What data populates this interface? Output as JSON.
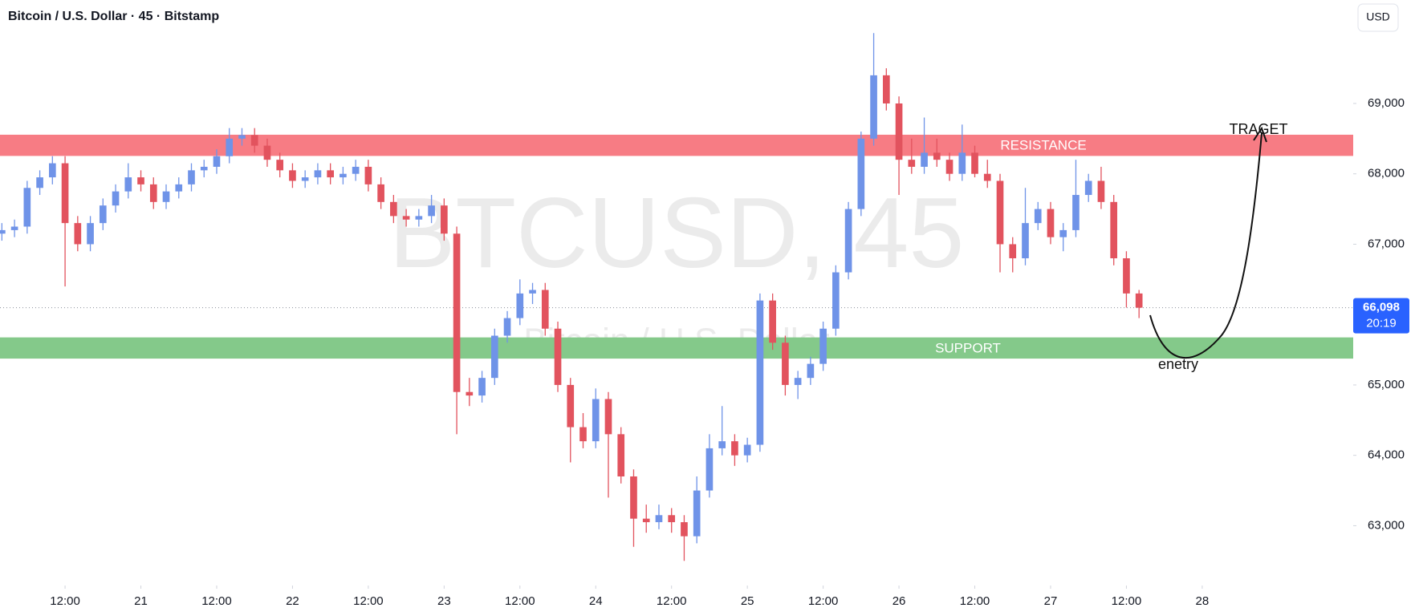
{
  "chart_data": {
    "type": "candlestick",
    "title": "Bitcoin / U.S. Dollar · 45 · Bitstamp",
    "currency": "USD",
    "watermark": "BTCUSD, 45",
    "watermark_subtitle": "Bitcoin / U.S. Dollar",
    "up_color": "#6f93e8",
    "down_color": "#e2535e",
    "grid": false,
    "xlim": [
      1.7,
      215.9
    ],
    "ylim": [
      62150,
      70470
    ],
    "xticks": [
      {
        "value": 12,
        "label": "12:00"
      },
      {
        "value": 24,
        "label": "21"
      },
      {
        "value": 36,
        "label": "12:00"
      },
      {
        "value": 48,
        "label": "22"
      },
      {
        "value": 60,
        "label": "12:00"
      },
      {
        "value": 72,
        "label": "23"
      },
      {
        "value": 84,
        "label": "12:00"
      },
      {
        "value": 96,
        "label": "24"
      },
      {
        "value": 108,
        "label": "12:00"
      },
      {
        "value": 120,
        "label": "25"
      },
      {
        "value": 132,
        "label": "12:00"
      },
      {
        "value": 144,
        "label": "26"
      },
      {
        "value": 156,
        "label": "12:00"
      },
      {
        "value": 168,
        "label": "27"
      },
      {
        "value": 180,
        "label": "12:00"
      },
      {
        "value": 192,
        "label": "28"
      }
    ],
    "yticks": [
      {
        "value": 63000,
        "label": "63,000"
      },
      {
        "value": 64000,
        "label": "64,000"
      },
      {
        "value": 65000,
        "label": "65,000"
      },
      {
        "value": 66000,
        "label": "66,000"
      },
      {
        "value": 67000,
        "label": "67,000"
      },
      {
        "value": 68000,
        "label": "68,000"
      },
      {
        "value": 69000,
        "label": "69,000"
      }
    ],
    "last_price": {
      "value": 66098,
      "label": "66,098"
    },
    "countdown": "20:19",
    "zones": [
      {
        "label": "RESISTANCE",
        "range": [
          68260,
          68550
        ],
        "color": "#f77c84"
      },
      {
        "label": "SUPPORT",
        "range": [
          65380,
          65670
        ],
        "color": "#84c98a"
      }
    ],
    "annotations": [
      "TRAGET",
      "enetry"
    ],
    "x": [
      2,
      4,
      6,
      8,
      10,
      12,
      14,
      16,
      18,
      20,
      22,
      24,
      26,
      28,
      30,
      32,
      34,
      36,
      38,
      40,
      42,
      44,
      46,
      48,
      50,
      52,
      54,
      56,
      58,
      60,
      62,
      64,
      66,
      68,
      70,
      72,
      74,
      76,
      78,
      80,
      82,
      84,
      86,
      88,
      90,
      92,
      94,
      96,
      98,
      100,
      102,
      104,
      106,
      108,
      110,
      112,
      114,
      116,
      118,
      120,
      122,
      124,
      126,
      128,
      130,
      132,
      134,
      136,
      138,
      140,
      142,
      144,
      146,
      148,
      150,
      152,
      154,
      156,
      158,
      160,
      162,
      164,
      166,
      168,
      170,
      172,
      174,
      176,
      178,
      180,
      182
    ],
    "ohlc": [
      [
        67150,
        67300,
        67050,
        67200
      ],
      [
        67200,
        67350,
        67100,
        67250
      ],
      [
        67250,
        67900,
        67150,
        67800
      ],
      [
        67800,
        68050,
        67700,
        67950
      ],
      [
        67950,
        68250,
        67850,
        68150
      ],
      [
        68150,
        68250,
        66400,
        67300
      ],
      [
        67300,
        67400,
        66900,
        67000
      ],
      [
        67000,
        67400,
        66900,
        67300
      ],
      [
        67300,
        67650,
        67200,
        67550
      ],
      [
        67550,
        67850,
        67450,
        67750
      ],
      [
        67750,
        68150,
        67650,
        67950
      ],
      [
        67950,
        68050,
        67750,
        67850
      ],
      [
        67850,
        67950,
        67500,
        67600
      ],
      [
        67600,
        67850,
        67500,
        67750
      ],
      [
        67750,
        67950,
        67650,
        67850
      ],
      [
        67850,
        68150,
        67750,
        68050
      ],
      [
        68050,
        68200,
        67950,
        68100
      ],
      [
        68100,
        68350,
        68000,
        68250
      ],
      [
        68250,
        68650,
        68150,
        68500
      ],
      [
        68500,
        68650,
        68400,
        68550
      ],
      [
        68550,
        68650,
        68300,
        68400
      ],
      [
        68400,
        68500,
        68100,
        68200
      ],
      [
        68200,
        68300,
        67950,
        68050
      ],
      [
        68050,
        68150,
        67800,
        67900
      ],
      [
        67900,
        68050,
        67800,
        67950
      ],
      [
        67950,
        68150,
        67850,
        68050
      ],
      [
        68050,
        68150,
        67850,
        67950
      ],
      [
        67950,
        68100,
        67850,
        68000
      ],
      [
        68000,
        68200,
        67900,
        68100
      ],
      [
        68100,
        68200,
        67750,
        67850
      ],
      [
        67850,
        67950,
        67500,
        67600
      ],
      [
        67600,
        67700,
        67300,
        67400
      ],
      [
        67400,
        67500,
        67250,
        67350
      ],
      [
        67350,
        67500,
        67250,
        67400
      ],
      [
        67400,
        67700,
        67300,
        67550
      ],
      [
        67550,
        67650,
        67050,
        67150
      ],
      [
        67150,
        67250,
        64300,
        64900
      ],
      [
        64900,
        65100,
        64700,
        64850
      ],
      [
        64850,
        65200,
        64750,
        65100
      ],
      [
        65100,
        65800,
        65000,
        65700
      ],
      [
        65700,
        66050,
        65600,
        65950
      ],
      [
        65950,
        66500,
        65850,
        66300
      ],
      [
        66300,
        66450,
        66150,
        66350
      ],
      [
        66350,
        66450,
        65700,
        65800
      ],
      [
        65800,
        65900,
        64900,
        65000
      ],
      [
        65000,
        65100,
        63900,
        64400
      ],
      [
        64400,
        64600,
        64100,
        64200
      ],
      [
        64200,
        64950,
        64100,
        64800
      ],
      [
        64800,
        64900,
        63400,
        64300
      ],
      [
        64300,
        64400,
        63600,
        63700
      ],
      [
        63700,
        63800,
        62700,
        63100
      ],
      [
        63100,
        63300,
        62900,
        63050
      ],
      [
        63050,
        63300,
        62950,
        63150
      ],
      [
        63150,
        63250,
        62900,
        63050
      ],
      [
        63050,
        63150,
        62500,
        62850
      ],
      [
        62850,
        63700,
        62750,
        63500
      ],
      [
        63500,
        64300,
        63400,
        64100
      ],
      [
        64100,
        64700,
        64000,
        64200
      ],
      [
        64200,
        64300,
        63850,
        64000
      ],
      [
        64000,
        64250,
        63900,
        64150
      ],
      [
        64150,
        66300,
        64050,
        66200
      ],
      [
        66200,
        66300,
        65500,
        65600
      ],
      [
        65600,
        65700,
        64850,
        65000
      ],
      [
        65000,
        65200,
        64800,
        65100
      ],
      [
        65100,
        65400,
        65000,
        65300
      ],
      [
        65300,
        65900,
        65200,
        65800
      ],
      [
        65800,
        66700,
        65700,
        66600
      ],
      [
        66600,
        67600,
        66500,
        67500
      ],
      [
        67500,
        68600,
        67400,
        68500
      ],
      [
        68500,
        70000,
        68400,
        69400
      ],
      [
        69400,
        69500,
        68900,
        69000
      ],
      [
        69000,
        69100,
        67700,
        68200
      ],
      [
        68200,
        68500,
        68000,
        68100
      ],
      [
        68100,
        68800,
        68000,
        68300
      ],
      [
        68300,
        68500,
        68100,
        68200
      ],
      [
        68200,
        68300,
        67900,
        68000
      ],
      [
        68000,
        68700,
        67900,
        68300
      ],
      [
        68300,
        68400,
        67950,
        68000
      ],
      [
        68000,
        68200,
        67800,
        67900
      ],
      [
        67900,
        68000,
        66600,
        67000
      ],
      [
        67000,
        67100,
        66600,
        66800
      ],
      [
        66800,
        67800,
        66700,
        67300
      ],
      [
        67300,
        67600,
        67200,
        67500
      ],
      [
        67500,
        67600,
        67000,
        67100
      ],
      [
        67100,
        67300,
        66900,
        67200
      ],
      [
        67200,
        68200,
        67100,
        67700
      ],
      [
        67700,
        68000,
        67600,
        67900
      ],
      [
        67900,
        68100,
        67500,
        67600
      ],
      [
        67600,
        67700,
        66700,
        66800
      ],
      [
        66800,
        66900,
        66100,
        66300
      ],
      [
        66300,
        66350,
        65950,
        66098
      ]
    ]
  }
}
